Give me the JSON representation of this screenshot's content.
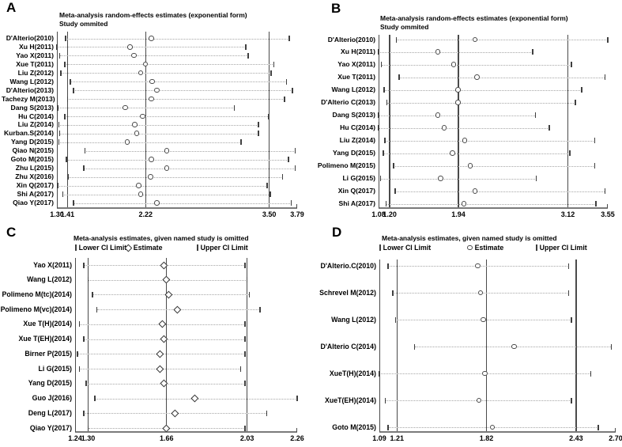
{
  "figure": {
    "background": "#ffffff",
    "text_color": "#000000",
    "ref_line_color": "#4a4a4a",
    "dotted_line_color": "#a6a6a6",
    "axis_color": "#7a7a7a",
    "marker_fill": "#ffffff"
  },
  "chart_data": [
    {
      "type": "forest",
      "panel": "A",
      "title": "Meta-analysis random-effects estimates (exponential form)",
      "subtitle": "Study ommited",
      "marker": "circle",
      "xlim": [
        1.3,
        3.79
      ],
      "xticks": [
        "1.30",
        "1.41",
        "2.22",
        "3.50",
        "3.79"
      ],
      "xtick_values": [
        1.3,
        1.41,
        2.22,
        3.5,
        3.79
      ],
      "ref_lines": [
        1.41,
        2.22,
        3.5
      ],
      "rows": [
        {
          "study": "D'Alterio(2010)",
          "lower": 1.39,
          "estimate": 2.28,
          "upper": 3.71
        },
        {
          "study": "Xu H(2011)",
          "lower": 1.3,
          "estimate": 2.06,
          "upper": 3.26
        },
        {
          "study": "Yao X(2011)",
          "lower": 1.33,
          "estimate": 2.1,
          "upper": 3.28
        },
        {
          "study": "Xue T(2011)",
          "lower": 1.38,
          "estimate": 2.22,
          "upper": 3.55
        },
        {
          "study": "Liu Z(2012)",
          "lower": 1.34,
          "estimate": 2.17,
          "upper": 3.52
        },
        {
          "study": "Wang L(2012)",
          "lower": 1.44,
          "estimate": 2.29,
          "upper": 3.68
        },
        {
          "study": "D'Alterio(2013)",
          "lower": 1.47,
          "estimate": 2.34,
          "upper": 3.74
        },
        {
          "study": "Tachezy M(2013)",
          "lower": 1.41,
          "estimate": 2.28,
          "upper": 3.66
        },
        {
          "study": "Dang S(2013)",
          "lower": 1.31,
          "estimate": 2.01,
          "upper": 3.14
        },
        {
          "study": "Hu C(2014)",
          "lower": 1.38,
          "estimate": 2.19,
          "upper": 3.49
        },
        {
          "study": "Liu Z(2014)",
          "lower": 1.32,
          "estimate": 2.11,
          "upper": 3.39
        },
        {
          "study": "Kurban.S(2014)",
          "lower": 1.33,
          "estimate": 2.13,
          "upper": 3.39
        },
        {
          "study": "Yang D(2015)",
          "lower": 1.32,
          "estimate": 2.03,
          "upper": 3.21
        },
        {
          "study": "Qiao N(2015)",
          "lower": 1.59,
          "estimate": 2.44,
          "upper": 3.77
        },
        {
          "study": "Goto M(2015)",
          "lower": 1.4,
          "estimate": 2.28,
          "upper": 3.7
        },
        {
          "study": "Zhu L(2015)",
          "lower": 1.58,
          "estimate": 2.44,
          "upper": 3.77
        },
        {
          "study": "Zhu X(2016)",
          "lower": 1.42,
          "estimate": 2.27,
          "upper": 3.64
        },
        {
          "study": "Xin Q(2017)",
          "lower": 1.31,
          "estimate": 2.15,
          "upper": 3.48
        },
        {
          "study": "Shi A(2017)",
          "lower": 1.36,
          "estimate": 2.17,
          "upper": 3.51
        },
        {
          "study": "Qiao Y(2017)",
          "lower": 1.47,
          "estimate": 2.34,
          "upper": 3.73
        }
      ]
    },
    {
      "type": "forest",
      "panel": "B",
      "title": "Meta-analysis random-effects estimates (exponential form)",
      "subtitle": "Study ommited",
      "marker": "circle",
      "xlim": [
        1.08,
        3.55
      ],
      "xticks": [
        "1.08",
        "1.20",
        "1.94",
        "3.12",
        "3.55"
      ],
      "xtick_values": [
        1.08,
        1.2,
        1.94,
        3.12,
        3.55
      ],
      "ref_lines": [
        1.2,
        1.94,
        3.12
      ],
      "rows": [
        {
          "study": "D'Alterio(2010)",
          "lower": 1.27,
          "estimate": 2.12,
          "upper": 3.55
        },
        {
          "study": "Xu H(2011)",
          "lower": 1.08,
          "estimate": 1.72,
          "upper": 2.74
        },
        {
          "study": "Yao X(2011)",
          "lower": 1.11,
          "estimate": 1.89,
          "upper": 3.16
        },
        {
          "study": "Xue T(2011)",
          "lower": 1.3,
          "estimate": 2.14,
          "upper": 3.52
        },
        {
          "study": "Wang L(2012)",
          "lower": 1.14,
          "estimate": 1.94,
          "upper": 3.27
        },
        {
          "study": "D'Alterio C(2013)",
          "lower": 1.17,
          "estimate": 1.94,
          "upper": 3.2
        },
        {
          "study": "Dang S(2013)",
          "lower": 1.08,
          "estimate": 1.72,
          "upper": 2.77
        },
        {
          "study": "Hu C(2014)",
          "lower": 1.08,
          "estimate": 1.79,
          "upper": 2.92
        },
        {
          "study": "Liu Z(2014)",
          "lower": 1.15,
          "estimate": 2.01,
          "upper": 3.41
        },
        {
          "study": "Yang D(2015)",
          "lower": 1.13,
          "estimate": 1.88,
          "upper": 3.14
        },
        {
          "study": "Polimeno M(2015)",
          "lower": 1.24,
          "estimate": 2.07,
          "upper": 3.41
        },
        {
          "study": "Li G(2015)",
          "lower": 1.1,
          "estimate": 1.75,
          "upper": 2.78
        },
        {
          "study": "Xin Q(2017)",
          "lower": 1.26,
          "estimate": 2.12,
          "upper": 3.52
        },
        {
          "study": "Shi A(2017)",
          "lower": 1.16,
          "estimate": 2.0,
          "upper": 3.42
        }
      ]
    },
    {
      "type": "forest",
      "panel": "C",
      "title": "Meta-analysis estimates, given named study is omitted",
      "legend": {
        "lower": "Lower CI Limit",
        "estimate": "Estimate",
        "upper": "Upper CI Limit"
      },
      "marker": "diamond",
      "xlim": [
        1.24,
        2.26
      ],
      "xticks": [
        "1.24",
        "1.30",
        "1.66",
        "2.03",
        "2.26"
      ],
      "xtick_values": [
        1.24,
        1.3,
        1.66,
        2.03,
        2.26
      ],
      "ref_lines": [
        1.3,
        1.66,
        2.03
      ],
      "rows": [
        {
          "study": "Yao X(2011)",
          "lower": 1.28,
          "estimate": 1.65,
          "upper": 2.02
        },
        {
          "study": "Wang L(2012)",
          "lower": 1.3,
          "estimate": 1.66,
          "upper": 2.03
        },
        {
          "study": "Polimeno M(tc)(2014)",
          "lower": 1.32,
          "estimate": 1.67,
          "upper": 2.04
        },
        {
          "study": "Polimeno M(vc)(2014)",
          "lower": 1.34,
          "estimate": 1.71,
          "upper": 2.09
        },
        {
          "study": "Xue T(H)(2014)",
          "lower": 1.26,
          "estimate": 1.64,
          "upper": 2.02
        },
        {
          "study": "Xue T(EH)(2014)",
          "lower": 1.28,
          "estimate": 1.65,
          "upper": 2.02
        },
        {
          "study": "Birner P(2015)",
          "lower": 1.25,
          "estimate": 1.63,
          "upper": 2.02
        },
        {
          "study": "Li G(2015)",
          "lower": 1.26,
          "estimate": 1.63,
          "upper": 2.0
        },
        {
          "study": "Yang D(2015)",
          "lower": 1.29,
          "estimate": 1.65,
          "upper": 2.02
        },
        {
          "study": "Guo J(2016)",
          "lower": 1.33,
          "estimate": 1.79,
          "upper": 2.26
        },
        {
          "study": "Deng L(2017)",
          "lower": 1.28,
          "estimate": 1.7,
          "upper": 2.12
        },
        {
          "study": "Qiao Y(2017)",
          "lower": 1.3,
          "estimate": 1.66,
          "upper": 2.02
        }
      ]
    },
    {
      "type": "forest",
      "panel": "D",
      "title": "Meta-analysis estimates, given named study is omitted",
      "legend": {
        "lower": "Lower CI Limit",
        "estimate": "Estimate",
        "upper": "Upper CI Limit"
      },
      "marker": "circle",
      "xlim": [
        1.09,
        2.7
      ],
      "xticks": [
        "1.09",
        "1.21",
        "1.82",
        "2.43",
        "2.70"
      ],
      "xtick_values": [
        1.09,
        1.21,
        1.82,
        2.43,
        2.7
      ],
      "ref_lines": [
        1.21,
        1.82,
        2.43
      ],
      "rows": [
        {
          "study": "D'Alterio.C(2010)",
          "lower": 1.15,
          "estimate": 1.76,
          "upper": 2.38
        },
        {
          "study": "Schrevel M(2012)",
          "lower": 1.18,
          "estimate": 1.78,
          "upper": 2.38
        },
        {
          "study": "Wang L(2012)",
          "lower": 1.2,
          "estimate": 1.8,
          "upper": 2.4
        },
        {
          "study": "D'Alterio C(2014)",
          "lower": 1.33,
          "estimate": 2.01,
          "upper": 2.67
        },
        {
          "study": "XueT(H)(2014)",
          "lower": 1.09,
          "estimate": 1.81,
          "upper": 2.53
        },
        {
          "study": "XueT(EH)(2014)",
          "lower": 1.13,
          "estimate": 1.77,
          "upper": 2.4
        },
        {
          "study": "Goto M(2015)",
          "lower": 1.15,
          "estimate": 1.86,
          "upper": 2.58
        }
      ]
    }
  ]
}
